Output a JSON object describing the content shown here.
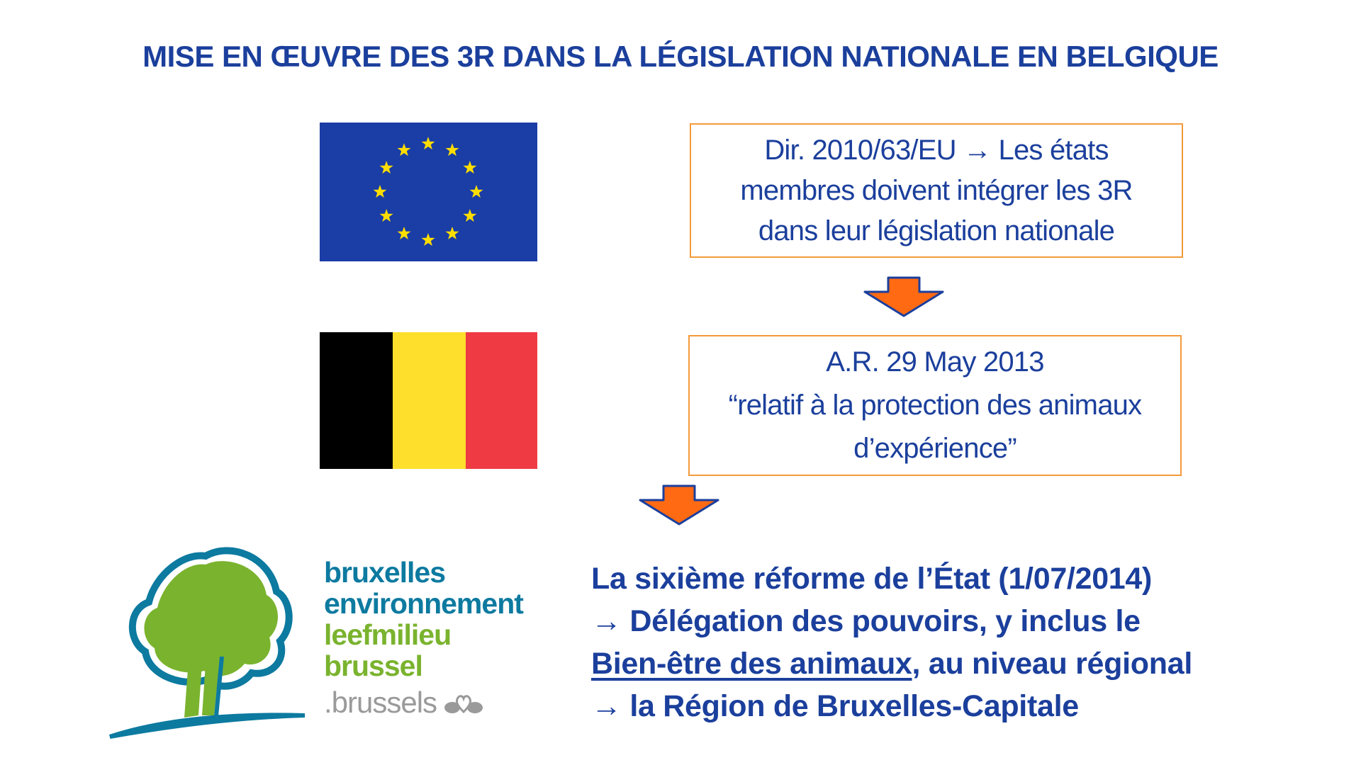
{
  "title": "MISE EN ŒUVRE DES 3R DANS LA LÉGISLATION NATIONALE EN BELGIQUE",
  "eu_box": {
    "lines": [
      "Dir. 2010/63/EU → Les états",
      "membres doivent intégrer les 3R",
      "dans leur législation nationale"
    ]
  },
  "be_box": {
    "lines": [
      "A.R. 29 May 2013",
      "“relatif à la protection des animaux",
      "d’expérience”"
    ]
  },
  "bottom": {
    "line1": "La sixième réforme de l’État (1/07/2014)",
    "line2": "→ Délégation des pouvoirs, y inclus le",
    "line3_underlined": "Bien-être des animaux",
    "line3_rest": ", au niveau régional",
    "line4": "→ la Région de Bruxelles-Capitale"
  },
  "logo": {
    "line1": "bruxelles",
    "line2": "environnement",
    "line3": "leefmilieu",
    "line4": "brussel",
    "line5": ".brussels"
  },
  "colors": {
    "title_blue": "#1b3f9c",
    "box_border": "#f39a3a",
    "arrow_fill": "#ff6a13",
    "arrow_outline": "#1b3f9c",
    "eu_blue": "#1a3da6",
    "eu_star": "#ffdd00",
    "be_black": "#000000",
    "be_yellow": "#fddf2c",
    "be_red": "#ef3a44",
    "logo_blue": "#0d7aa0",
    "logo_green": "#7ab32e",
    "logo_grey": "#9a9a9a"
  }
}
